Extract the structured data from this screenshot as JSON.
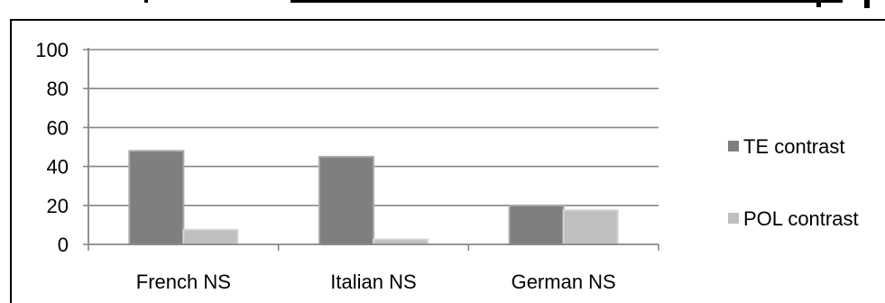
{
  "chart_data": {
    "type": "bar",
    "categories": [
      "French NS",
      "Italian NS",
      "German NS"
    ],
    "series": [
      {
        "name": "TE contrast",
        "values": [
          48,
          45,
          20
        ],
        "color": "#7f7f7f"
      },
      {
        "name": "POL contrast",
        "values": [
          7.5,
          2.5,
          17.5
        ],
        "color": "#bfbfbf"
      }
    ],
    "ylim": [
      0,
      100
    ],
    "yticks": [
      "0",
      "20",
      "40",
      "60",
      "80",
      "100"
    ],
    "grid": true,
    "legend_position": "right"
  }
}
